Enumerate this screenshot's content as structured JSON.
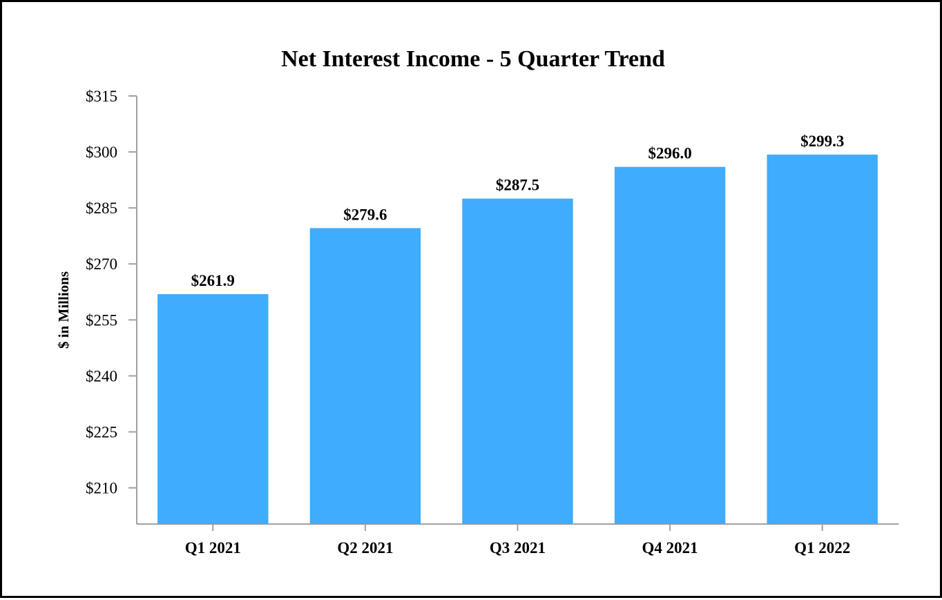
{
  "chart_data": {
    "type": "bar",
    "title": "Net Interest Income - 5 Quarter Trend",
    "ylabel": "$ in Millions",
    "xlabel": "",
    "categories": [
      "Q1 2021",
      "Q2 2021",
      "Q3 2021",
      "Q4 2021",
      "Q1 2022"
    ],
    "values": [
      261.9,
      279.6,
      287.5,
      296.0,
      299.3
    ],
    "data_labels": [
      "$261.9",
      "$279.6",
      "$287.5",
      "$296.0",
      "$299.3"
    ],
    "ylim": [
      200.3,
      315
    ],
    "yticks": [
      210,
      225,
      240,
      255,
      270,
      285,
      300,
      315
    ],
    "ytick_labels": [
      "$210",
      "$225",
      "$240",
      "$255",
      "$270",
      "$285",
      "$300",
      "$315"
    ],
    "grid": false,
    "legend": "none",
    "bar_color": "#3FACFC",
    "axis_color": "#A0A0A0"
  }
}
